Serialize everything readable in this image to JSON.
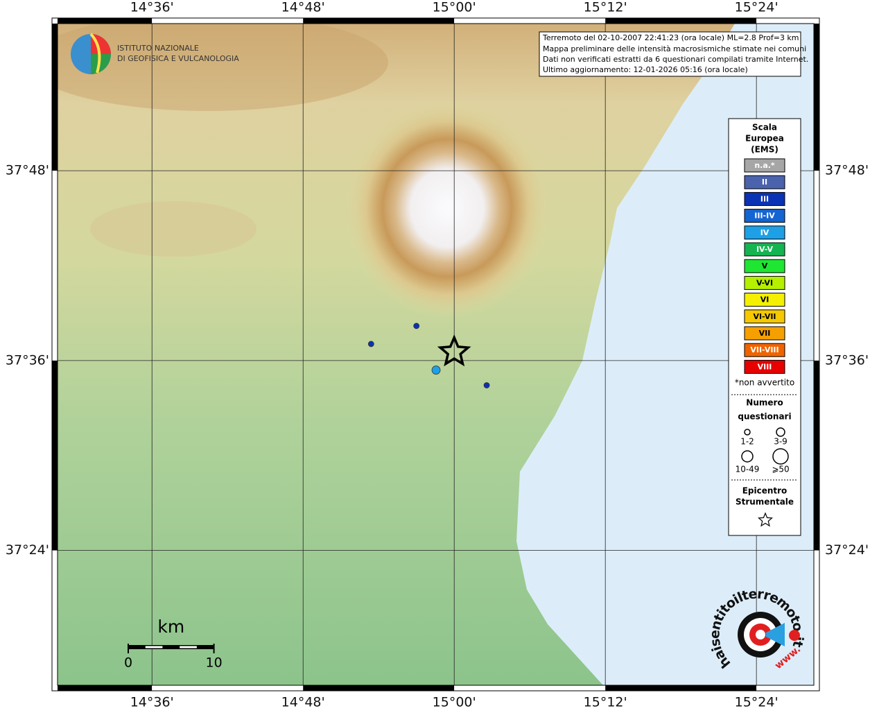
{
  "map": {
    "info_lines": [
      "Terremoto del 02-10-2007 22:41:23 (ora locale) ML=2.8 Prof=3 km",
      "Mappa preliminare delle intensità macrosismiche stimate nei comuni",
      "Dati non verificati estratti da 6 questionari compilati tramite Internet.",
      "Ultimo aggiornamento: 12-01-2026 05:16 (ora locale)"
    ],
    "logo_lines": [
      "ISTITUTO NAZIONALE",
      "DI GEOFISICA E VULCANOLOGIA"
    ],
    "xlim": [
      14.475,
      15.476
    ],
    "ylim": [
      37.258,
      37.955
    ],
    "xticks": [
      {
        "value": 14.6,
        "label": "14°36'"
      },
      {
        "value": 14.8,
        "label": "14°48'"
      },
      {
        "value": 15.0,
        "label": "15°00'"
      },
      {
        "value": 15.2,
        "label": "15°12'"
      },
      {
        "value": 15.4,
        "label": "15°24'"
      }
    ],
    "yticks": [
      {
        "value": 37.8,
        "label": "37°48'"
      },
      {
        "value": 37.6,
        "label": "37°36'"
      },
      {
        "value": 37.4,
        "label": "37°24'"
      }
    ],
    "grid": true,
    "legend": {
      "title": [
        "Scala",
        "Europea",
        "(EMS)"
      ],
      "classes": [
        {
          "label": "n.a.*",
          "color": "#a6a6a6"
        },
        {
          "label": "II",
          "color": "#4b63ad"
        },
        {
          "label": "III",
          "color": "#0a32b4"
        },
        {
          "label": "III-IV",
          "color": "#1464d2"
        },
        {
          "label": "IV",
          "color": "#1ea0e6"
        },
        {
          "label": "IV-V",
          "color": "#14b450"
        },
        {
          "label": "V",
          "color": "#1ee632"
        },
        {
          "label": "V-VI",
          "color": "#b4f000"
        },
        {
          "label": "VI",
          "color": "#f5f000"
        },
        {
          "label": "VI-VII",
          "color": "#f5c800"
        },
        {
          "label": "VII",
          "color": "#f5a000"
        },
        {
          "label": "VII-VIII",
          "color": "#f06400"
        },
        {
          "label": "VIII",
          "color": "#e60000"
        }
      ],
      "note": "*non avvertito",
      "size_title": [
        "Numero",
        "questionari"
      ],
      "sizes": [
        "1-2",
        "3-9",
        "10-49",
        "⩾50"
      ],
      "epicenter_title": [
        "Epicentro",
        "Strumentale"
      ]
    },
    "points": [
      {
        "lon": 14.89,
        "lat": 37.6175,
        "class": 2,
        "size": 0
      },
      {
        "lon": 14.95,
        "lat": 37.6365,
        "class": 2,
        "size": 0
      },
      {
        "lon": 14.976,
        "lat": 37.59,
        "class": 4,
        "size": 1
      },
      {
        "lon": 15.043,
        "lat": 37.574,
        "class": 2,
        "size": 0
      }
    ],
    "epicenter": {
      "lon": 15.0,
      "lat": 37.609
    },
    "scale_bar": {
      "unit": "km",
      "ticks": [
        0,
        10
      ]
    },
    "site_logo": {
      "text": "haisentitoilterremoto.it",
      "prefix": "www."
    }
  }
}
